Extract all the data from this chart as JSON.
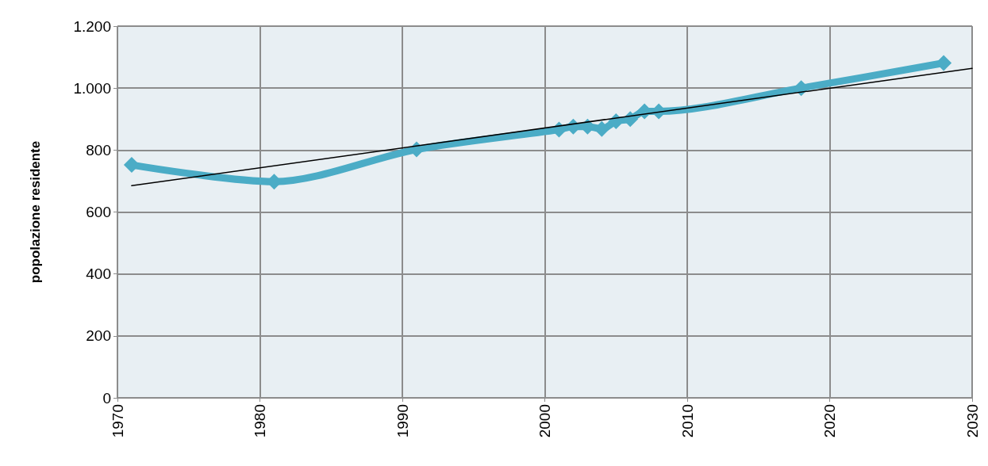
{
  "chart_data": {
    "type": "line",
    "ylabel": "popolazione residente",
    "marker": "diamond",
    "grid": true,
    "xlim": [
      1970,
      2030
    ],
    "xticks": [
      1970,
      1980,
      1990,
      2000,
      2010,
      2020,
      2030
    ],
    "ylim": [
      0,
      1200
    ],
    "yticks": [
      0,
      200,
      400,
      600,
      800,
      {
        "value": 1000,
        "label": "1.000"
      },
      {
        "value": 1200,
        "label": "1.200"
      }
    ],
    "series": [
      {
        "color": "#4bacc6",
        "x": [
          1971,
          1981,
          1991,
          2001,
          2002,
          2003,
          2004,
          2005,
          2006,
          2007,
          2008,
          2018,
          2028
        ],
        "values": [
          752,
          698,
          802,
          866,
          876,
          876,
          868,
          893,
          900,
          925,
          925,
          1000,
          1081
        ]
      },
      {
        "color": "#000000",
        "marker": "none",
        "x": [
          1971,
          2030
        ],
        "values": [
          685,
          1064
        ]
      }
    ]
  }
}
